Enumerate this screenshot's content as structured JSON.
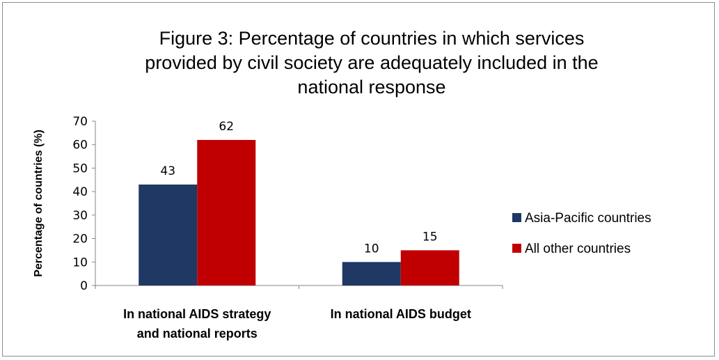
{
  "chart_data": {
    "type": "bar",
    "title_lines": [
      "Figure 3: Percentage of countries in which services",
      "provided by civil society are adequately included in the",
      "national response"
    ],
    "ylabel": "Percentage of countries (%)",
    "xlabel": "",
    "ylim": [
      0,
      70
    ],
    "yticks": [
      0,
      10,
      20,
      30,
      40,
      50,
      60,
      70
    ],
    "categories": [
      [
        "In national  AIDS strategy",
        "and national  reports"
      ],
      [
        "In national  AIDS budget"
      ]
    ],
    "series": [
      {
        "name": "Asia-Pacific countries",
        "color": "#1f3864",
        "values": [
          43,
          10
        ]
      },
      {
        "name": "All other countries",
        "color": "#c00000",
        "values": [
          62,
          15
        ]
      }
    ],
    "legend_position": "right",
    "grid": false
  }
}
